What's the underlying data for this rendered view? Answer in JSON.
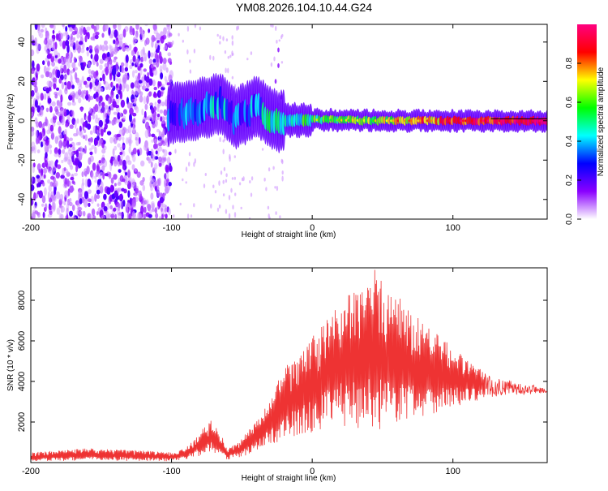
{
  "title": "YM08.2026.104.10.44.G24",
  "chart_data": [
    {
      "type": "heatmap",
      "subtype": "spectrogram",
      "xlabel": "Height of straight line (km)",
      "ylabel": "Frequency (Hz)",
      "xlim": [
        -200,
        167
      ],
      "ylim": [
        -50,
        49
      ],
      "xticks": [
        -200,
        -100,
        0,
        100
      ],
      "yticks": [
        -40,
        -20,
        0,
        20,
        40
      ],
      "xtick_labels": [
        "-200",
        "-100",
        "0",
        "100"
      ],
      "ytick_labels": [
        "-40",
        "-20",
        "0",
        "20",
        "40"
      ],
      "colorbar": {
        "label": "Normalized spectral amplitude",
        "range": [
          0,
          1
        ],
        "ticks": [
          0,
          0.2,
          0.4,
          0.6,
          0.8
        ],
        "tick_labels": [
          "0.0",
          "0.2",
          "0.4",
          "0.6",
          "0.8"
        ],
        "colormap": [
          "#ffffff",
          "#8a00ff",
          "#0000ff",
          "#00ffff",
          "#00ff00",
          "#ffff00",
          "#ff0000",
          "#ff0080"
        ]
      },
      "ridge": [
        {
          "x": -100,
          "freq": 3,
          "amp": 0.25
        },
        {
          "x": -80,
          "freq": 6,
          "amp": 0.35
        },
        {
          "x": -65,
          "freq": 9,
          "amp": 0.35
        },
        {
          "x": -55,
          "freq": 1,
          "amp": 0.3
        },
        {
          "x": -40,
          "freq": 7,
          "amp": 0.35
        },
        {
          "x": -25,
          "freq": 0,
          "amp": 0.45
        },
        {
          "x": 0,
          "freq": 0.5,
          "amp": 0.5
        },
        {
          "x": 50,
          "freq": 0,
          "amp": 0.6
        },
        {
          "x": 100,
          "freq": 0,
          "amp": 0.8
        },
        {
          "x": 167,
          "freq": 0,
          "amp": 0.95
        }
      ]
    },
    {
      "type": "line",
      "xlabel": "Height of straight line (km)",
      "ylabel": "SNR (10 * v/v)",
      "xlim": [
        -200,
        167
      ],
      "ylim": [
        0,
        9600
      ],
      "xticks": [
        -200,
        -100,
        0,
        100
      ],
      "yticks": [
        2000,
        4000,
        6000,
        8000
      ],
      "xtick_labels": [
        "-200",
        "-100",
        "0",
        "100"
      ],
      "ytick_labels": [
        "2000",
        "4000",
        "6000",
        "8000"
      ],
      "series": [
        {
          "name": "SNR",
          "color": "#ee3333",
          "envelope": {
            "x": [
              -200,
              -160,
              -120,
              -100,
              -90,
              -80,
              -72,
              -65,
              -60,
              -55,
              -45,
              -35,
              -30,
              -20,
              -10,
              0,
              10,
              20,
              30,
              40,
              45,
              50,
              60,
              70,
              80,
              90,
              100,
              110,
              120,
              130,
              140,
              150,
              160,
              167
            ],
            "upper": [
              500,
              700,
              600,
              500,
              700,
              1500,
              2100,
              1400,
              700,
              900,
              1600,
              2500,
              3100,
              4700,
              5200,
              6200,
              7000,
              7900,
              8600,
              9200,
              9600,
              8900,
              8300,
              7500,
              6900,
              6300,
              5700,
              5100,
              4600,
              4300,
              4100,
              3900,
              3800,
              3700
            ],
            "lower": [
              50,
              100,
              80,
              60,
              150,
              300,
              500,
              300,
              150,
              200,
              400,
              700,
              900,
              1100,
              1300,
              1500,
              1700,
              1800,
              1700,
              1600,
              1500,
              1700,
              1900,
              2100,
              2300,
              2500,
              2700,
              2900,
              3100,
              3200,
              3300,
              3300,
              3400,
              3400
            ]
          }
        }
      ]
    }
  ]
}
